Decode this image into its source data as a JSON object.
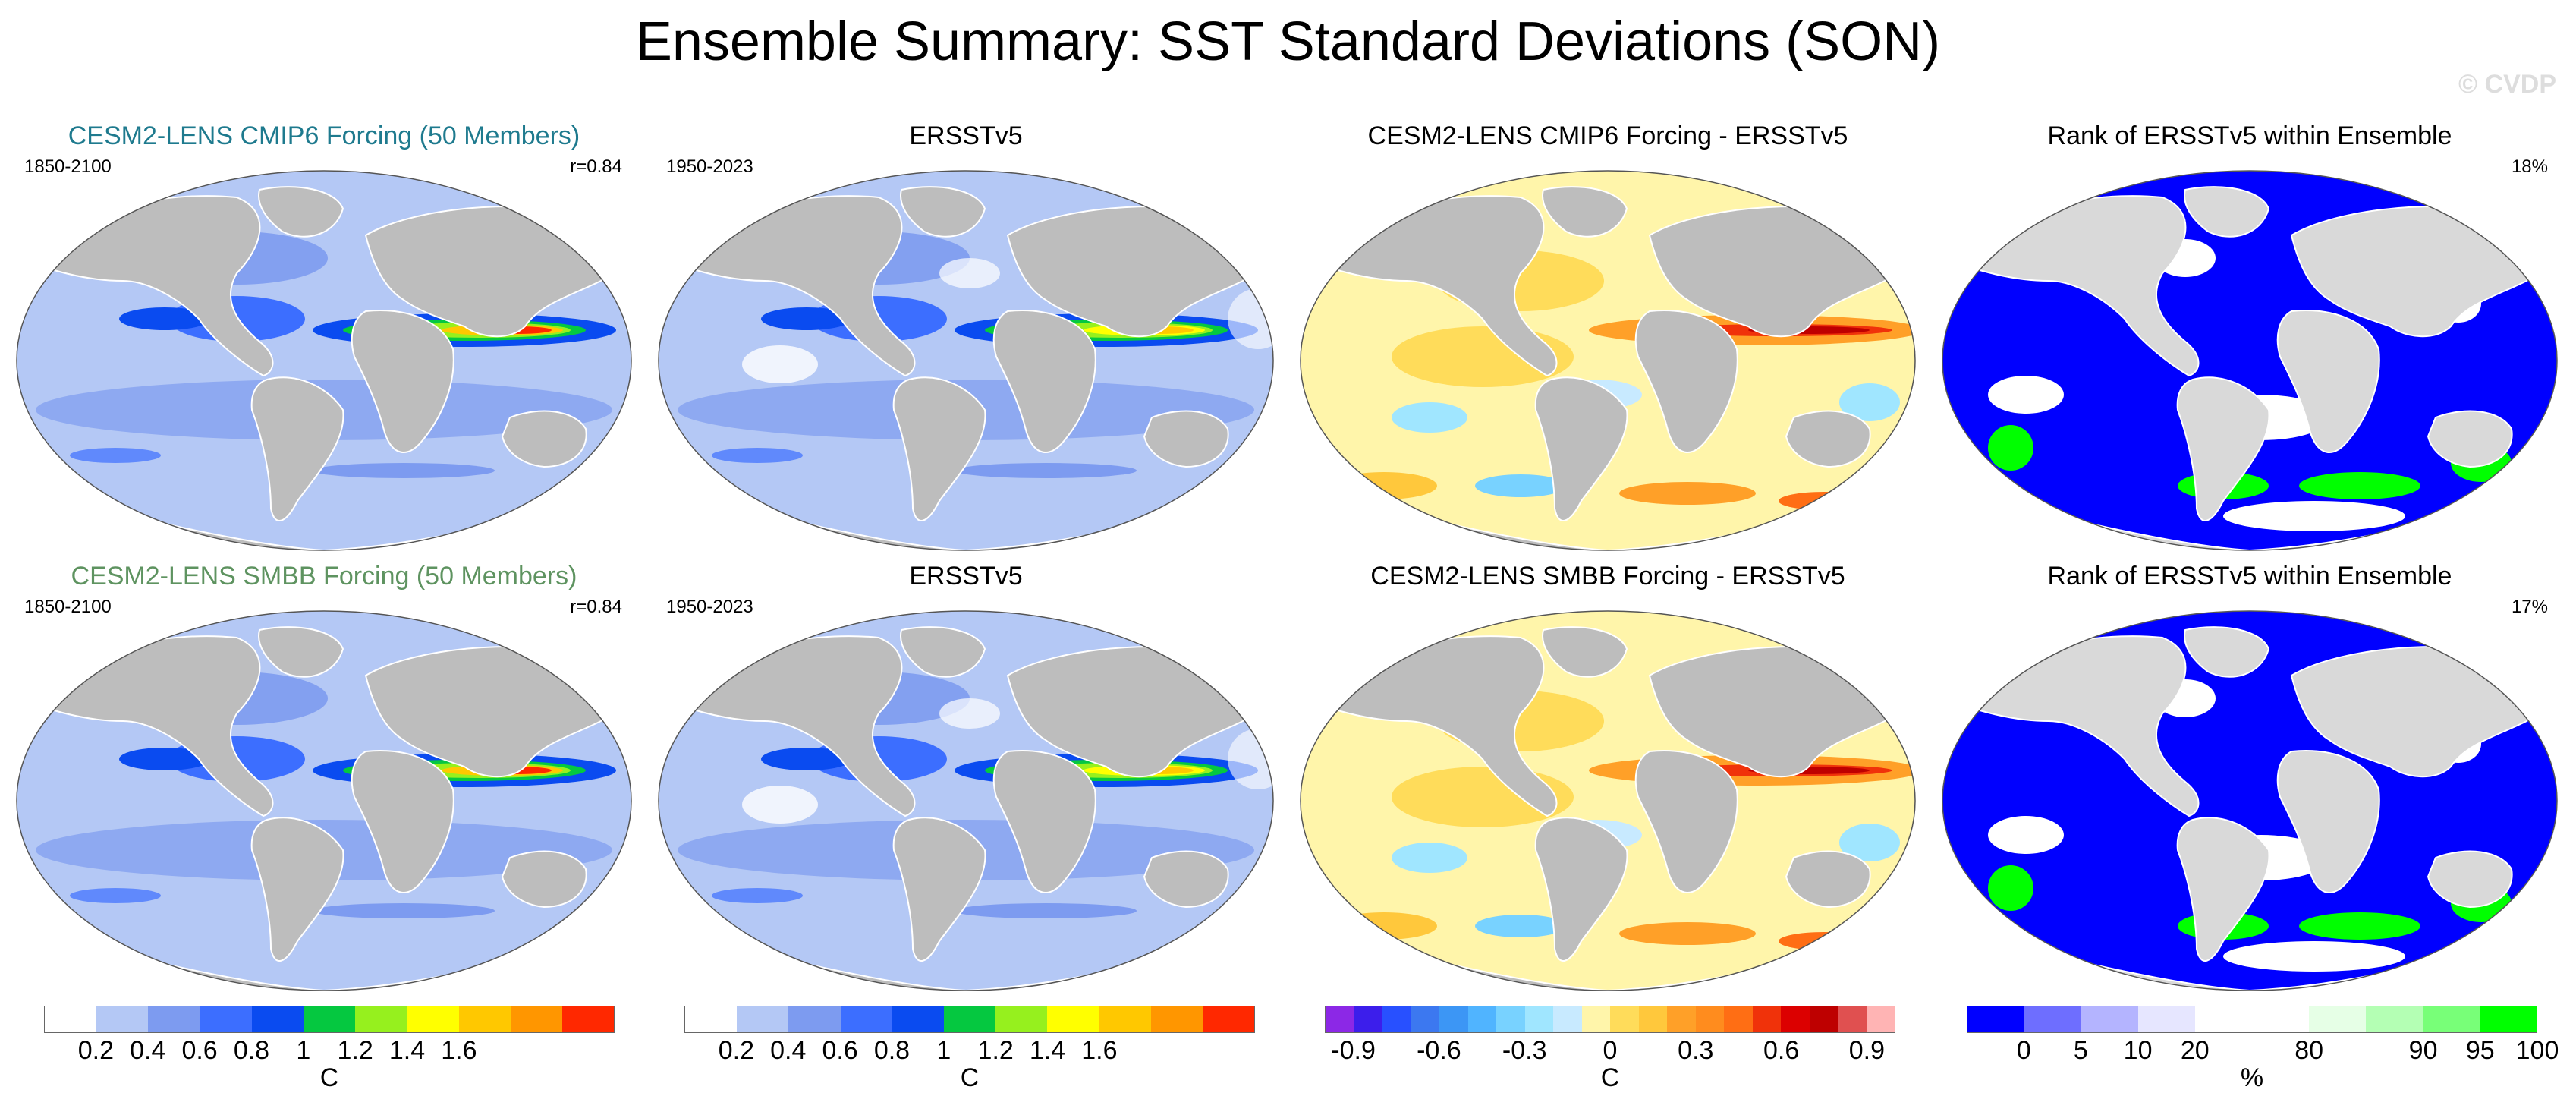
{
  "title": "Ensemble Summary: SST Standard Deviations (SON)",
  "watermark": "© CVDP",
  "colors": {
    "title_cmip6": "#1e7a8e",
    "title_smbb": "#5e9360",
    "land": "#bdbdbd",
    "land_rank": "#d9d9d9"
  },
  "rows": [
    {
      "panels": [
        {
          "kind": "model",
          "title": "CESM2-LENS CMIP6 Forcing (50 Members)",
          "left": "1850-2100",
          "right": "r=0.84"
        },
        {
          "kind": "obs",
          "title": "ERSSTv5",
          "left": "1950-2023",
          "right": ""
        },
        {
          "kind": "diff",
          "title": "CESM2-LENS CMIP6 Forcing - ERSSTv5",
          "left": "",
          "right": ""
        },
        {
          "kind": "rank",
          "title": "Rank of ERSSTv5 within Ensemble",
          "left": "",
          "right": "18%"
        }
      ]
    },
    {
      "panels": [
        {
          "kind": "model",
          "title": "CESM2-LENS SMBB Forcing (50 Members)",
          "left": "1850-2100",
          "right": "r=0.84"
        },
        {
          "kind": "obs",
          "title": "ERSSTv5",
          "left": "1950-2023",
          "right": ""
        },
        {
          "kind": "diff",
          "title": "CESM2-LENS SMBB Forcing - ERSSTv5",
          "left": "",
          "right": ""
        },
        {
          "kind": "rank",
          "title": "Rank of ERSSTv5 within Ensemble",
          "left": "",
          "right": "17%"
        }
      ]
    }
  ],
  "colorbars": [
    {
      "unit": "C",
      "colors": [
        "#ffffff",
        "#b4c8f5",
        "#7d9bf0",
        "#3c6eff",
        "#0a4bf0",
        "#05c840",
        "#96f01e",
        "#ffff00",
        "#ffc800",
        "#ff9600",
        "#ff2800"
      ],
      "labels": [
        "0.2",
        "0.4",
        "0.6",
        "0.8",
        "1",
        "1.2",
        "1.4",
        "1.6"
      ],
      "label_index": [
        1,
        2,
        3,
        4,
        5,
        6,
        7,
        8
      ]
    },
    {
      "unit": "C",
      "colors": [
        "#ffffff",
        "#b4c8f5",
        "#7d9bf0",
        "#3c6eff",
        "#0a4bf0",
        "#05c840",
        "#96f01e",
        "#ffff00",
        "#ffc800",
        "#ff9600",
        "#ff2800"
      ],
      "labels": [
        "0.2",
        "0.4",
        "0.6",
        "0.8",
        "1",
        "1.2",
        "1.4",
        "1.6"
      ],
      "label_index": [
        1,
        2,
        3,
        4,
        5,
        6,
        7,
        8
      ]
    },
    {
      "unit": "C",
      "colors": [
        "#8c28e6",
        "#3c1eeb",
        "#2850ff",
        "#3c78f0",
        "#3c96f5",
        "#50b4ff",
        "#78d2ff",
        "#a0e6ff",
        "#c8eaff",
        "#fff5aa",
        "#ffdc5a",
        "#ffc83c",
        "#ffa028",
        "#ff8c1e",
        "#ff6e14",
        "#f0320a",
        "#dc0000",
        "#be0000",
        "#e05050",
        "#ffb4b4"
      ],
      "labels": [
        "-0.9",
        "-0.6",
        "-0.3",
        "0",
        "0.3",
        "0.6",
        "0.9"
      ],
      "label_index": [
        1,
        4,
        7,
        10,
        13,
        16,
        19
      ]
    },
    {
      "unit": "%",
      "colors": [
        "#0000ff",
        "#6e6eff",
        "#b4b4ff",
        "#e6e6ff",
        "#ffffff",
        "#ffffff",
        "#e6ffe6",
        "#b4ffb4",
        "#78ff78",
        "#00ff00"
      ],
      "labels": [
        "0",
        "5",
        "10",
        "20",
        "80",
        "90",
        "95",
        "100"
      ],
      "label_index": [
        1,
        2,
        3,
        4,
        6,
        8,
        9,
        10
      ]
    }
  ]
}
